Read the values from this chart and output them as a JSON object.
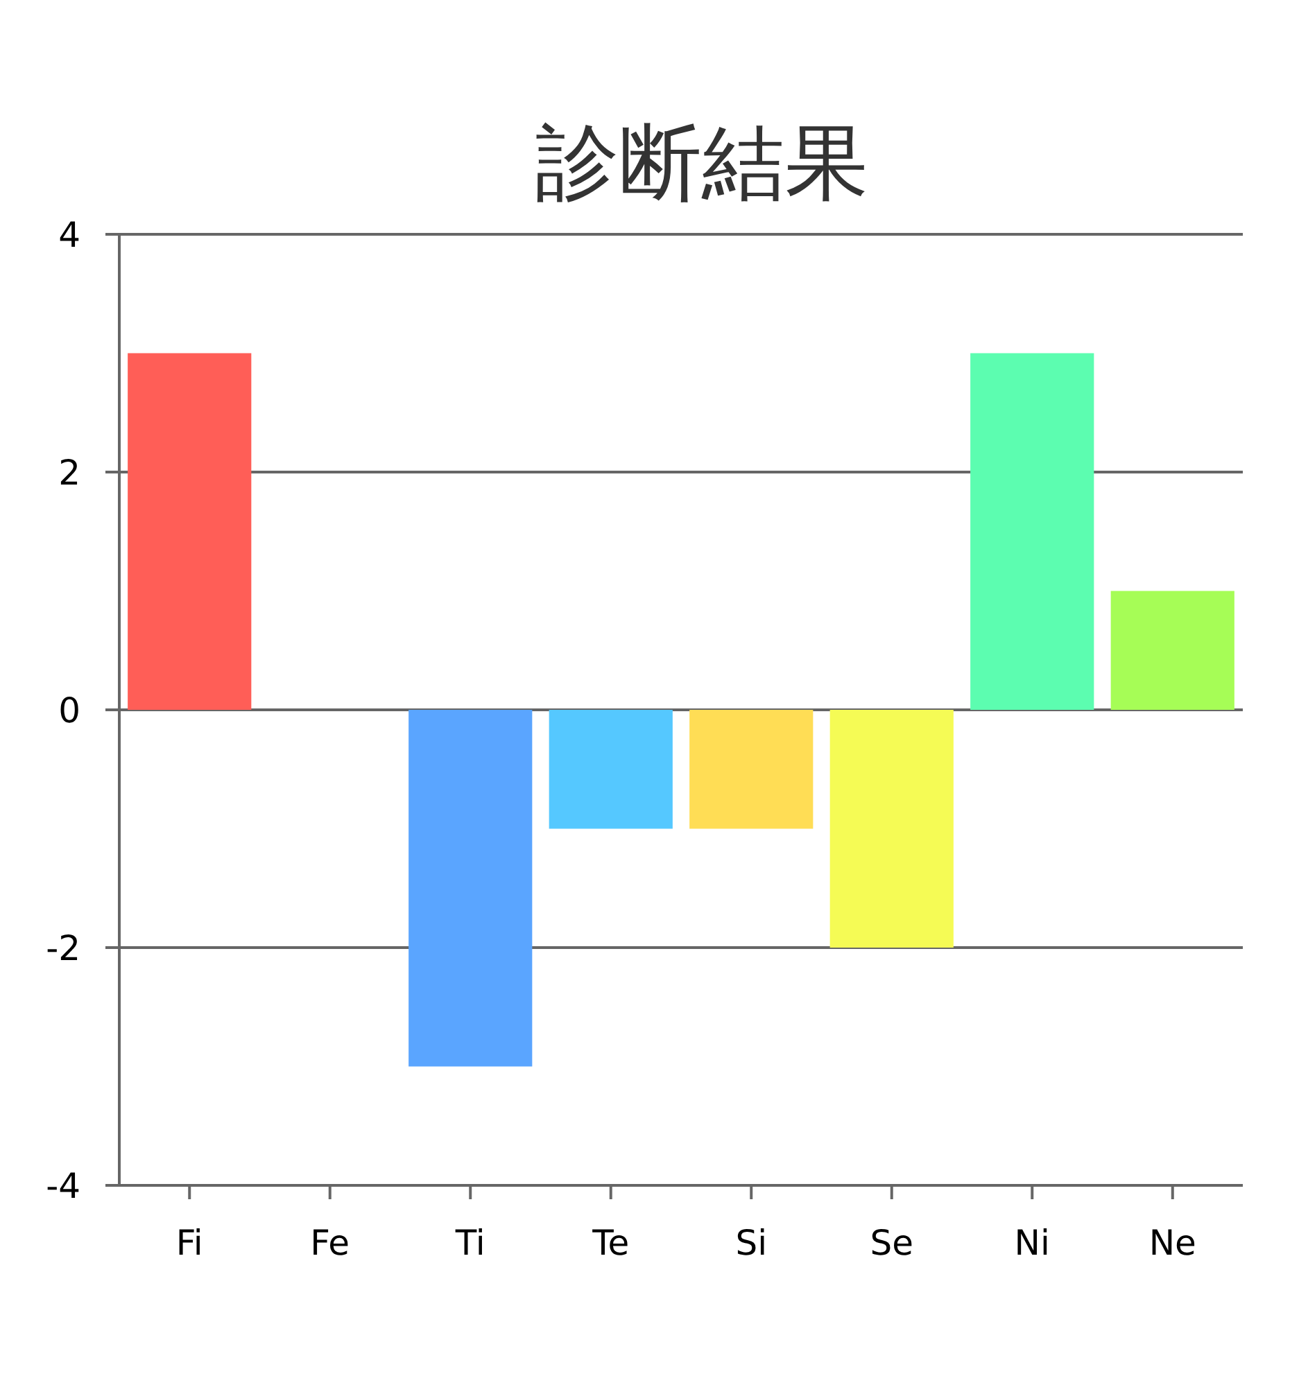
{
  "chart_data": {
    "type": "bar",
    "title": "診断結果",
    "categories": [
      "Fi",
      "Fe",
      "Ti",
      "Te",
      "Si",
      "Se",
      "Ni",
      "Ne"
    ],
    "values": [
      3,
      0,
      -3,
      -1,
      -1,
      -2,
      3,
      1
    ],
    "colors": [
      "#ff5e57",
      "#ff9a57",
      "#5aa5ff",
      "#55c8ff",
      "#ffdd55",
      "#f5fb55",
      "#5cfdb0",
      "#a6fd56"
    ],
    "ylim": [
      -4,
      4
    ],
    "yticks": [
      -4,
      -2,
      0,
      2,
      4
    ],
    "grid": "y"
  }
}
